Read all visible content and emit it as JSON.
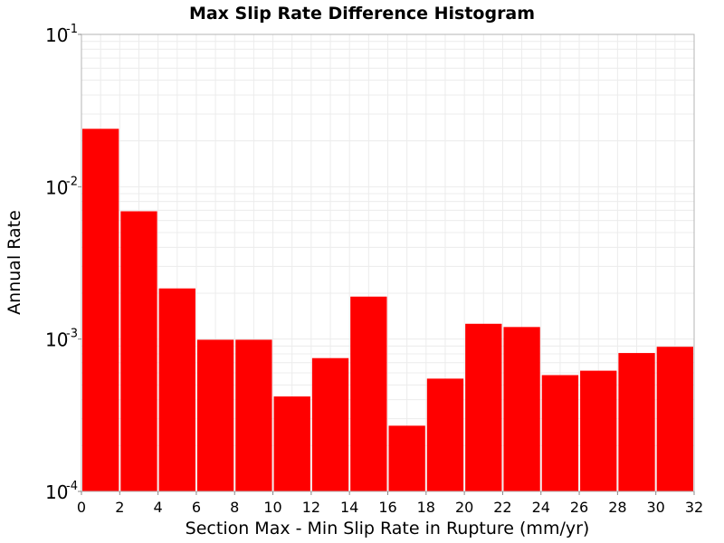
{
  "chart_data": {
    "type": "bar",
    "title": "Max Slip Rate Difference Histogram",
    "xlabel": "Section Max - Min Slip Rate in Rupture (mm/yr)",
    "ylabel": "Annual Rate",
    "x_tick_labels": [
      "0",
      "2",
      "4",
      "6",
      "8",
      "10",
      "12",
      "14",
      "16",
      "18",
      "20",
      "22",
      "24",
      "26",
      "28",
      "30",
      "32"
    ],
    "xlim": [
      0,
      32
    ],
    "ylim": [
      0.0001,
      0.1
    ],
    "yscale": "log",
    "y_tick_labels": [
      {
        "base": "10",
        "exp": "-4",
        "value": 0.0001
      },
      {
        "base": "10",
        "exp": "-3",
        "value": 0.001
      },
      {
        "base": "10",
        "exp": "-2",
        "value": 0.01
      },
      {
        "base": "10",
        "exp": "-1",
        "value": 0.1
      }
    ],
    "bar_color": "#ff0000",
    "grid": true,
    "bin_width": 2,
    "bins": [
      {
        "x": [
          0,
          2
        ],
        "value": 0.024
      },
      {
        "x": [
          2,
          4
        ],
        "value": 0.0069
      },
      {
        "x": [
          4,
          6
        ],
        "value": 0.00215
      },
      {
        "x": [
          6,
          8
        ],
        "value": 0.00099
      },
      {
        "x": [
          8,
          10
        ],
        "value": 0.00099
      },
      {
        "x": [
          10,
          12
        ],
        "value": 0.00042
      },
      {
        "x": [
          12,
          14
        ],
        "value": 0.00075
      },
      {
        "x": [
          14,
          16
        ],
        "value": 0.0019
      },
      {
        "x": [
          16,
          18
        ],
        "value": 0.00027
      },
      {
        "x": [
          18,
          20
        ],
        "value": 0.00055
      },
      {
        "x": [
          20,
          22
        ],
        "value": 0.00126
      },
      {
        "x": [
          22,
          24
        ],
        "value": 0.0012
      },
      {
        "x": [
          24,
          26
        ],
        "value": 0.00058
      },
      {
        "x": [
          26,
          28
        ],
        "value": 0.00062
      },
      {
        "x": [
          28,
          30
        ],
        "value": 0.00081
      },
      {
        "x": [
          30,
          32
        ],
        "value": 0.00089
      }
    ]
  }
}
